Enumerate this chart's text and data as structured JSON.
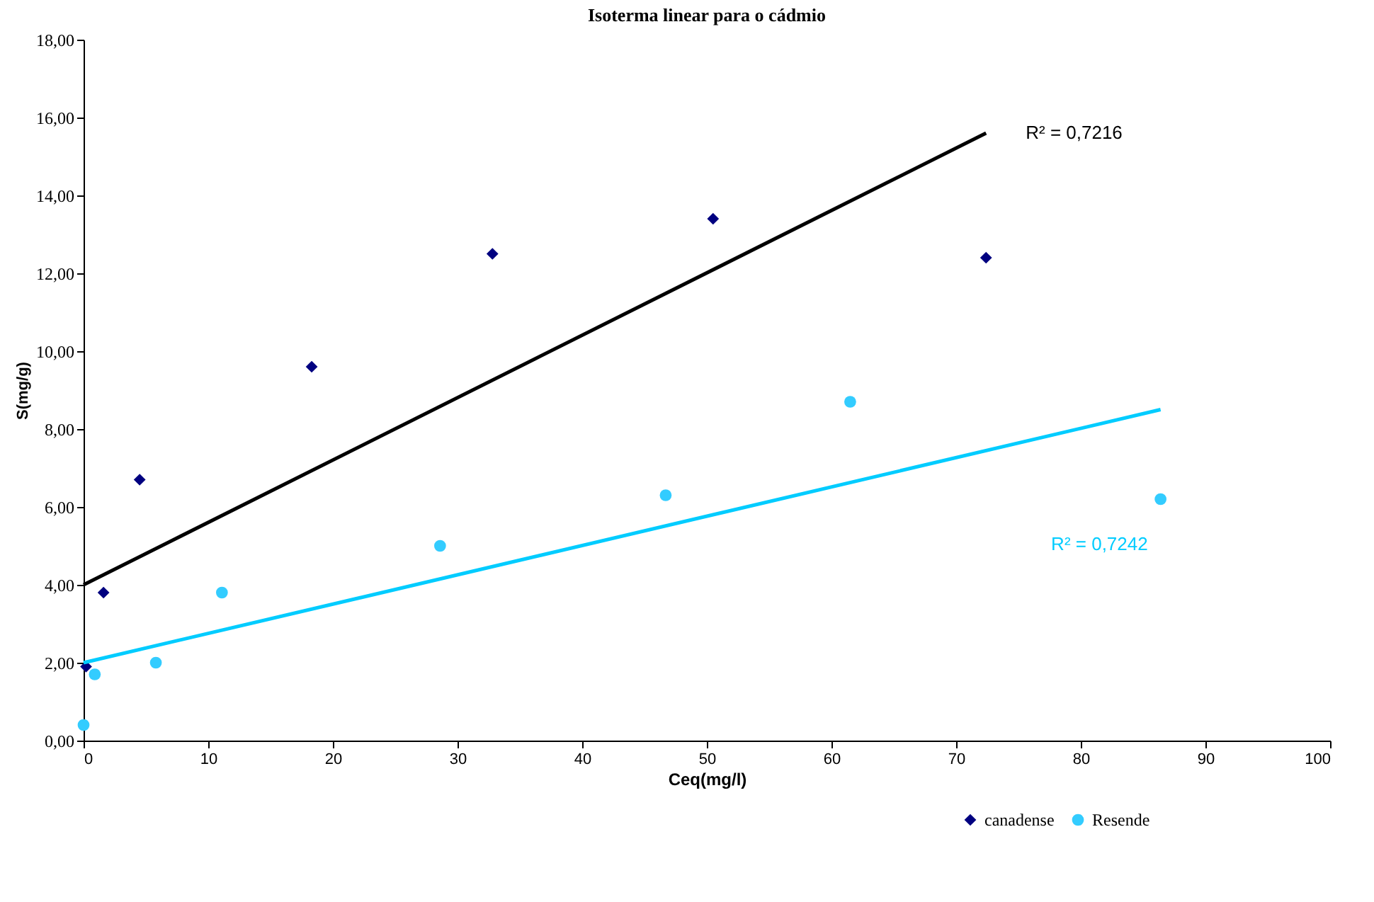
{
  "chart_data": {
    "type": "scatter",
    "title": "Isoterma linear para o cádmio",
    "xlabel": "Ceq(mg/l)",
    "ylabel": "S(mg/g)",
    "xlim": [
      0,
      100
    ],
    "xticks": [
      0,
      10,
      20,
      30,
      40,
      50,
      60,
      70,
      80,
      90,
      100
    ],
    "ylim": [
      0,
      18
    ],
    "yticks": [
      {
        "value": 0,
        "label": "0,00"
      },
      {
        "value": 2,
        "label": "2,00"
      },
      {
        "value": 4,
        "label": "4,00"
      },
      {
        "value": 6,
        "label": "6,00"
      },
      {
        "value": 8,
        "label": "8,00"
      },
      {
        "value": 10,
        "label": "10,00"
      },
      {
        "value": 12,
        "label": "12,00"
      },
      {
        "value": 14,
        "label": "14,00"
      },
      {
        "value": 16,
        "label": "16,00"
      },
      {
        "value": 18,
        "label": "18,00"
      }
    ],
    "grid": false,
    "legend": "bottom right",
    "series": [
      {
        "name": "canadense",
        "marker": "diamond",
        "color": "#000080",
        "x": [
          0.2,
          1.6,
          4.5,
          18.3,
          32.8,
          50.5,
          72.4
        ],
        "values": [
          1.9,
          3.8,
          6.7,
          9.6,
          12.5,
          13.4,
          12.4
        ]
      },
      {
        "name": "Resende",
        "marker": "circle",
        "color": "#33ccff",
        "x": [
          0,
          0.9,
          5.8,
          11.1,
          28.6,
          46.7,
          61.5,
          86.4
        ],
        "values": [
          0.4,
          1.7,
          2.0,
          3.8,
          5.0,
          6.3,
          8.7,
          6.2
        ]
      },
      {
        "type": "line",
        "color": "#000000",
        "x": [
          0,
          72.4
        ],
        "values": [
          4.0,
          15.6
        ]
      },
      {
        "type": "line",
        "color": "#00ccff",
        "x": [
          0,
          86.4
        ],
        "values": [
          2.0,
          8.5
        ]
      }
    ],
    "annotations": [
      {
        "text": "R² = 0,7216",
        "x": 72.4,
        "y": 15.6
      },
      "R² = 0,7242"
    ]
  }
}
